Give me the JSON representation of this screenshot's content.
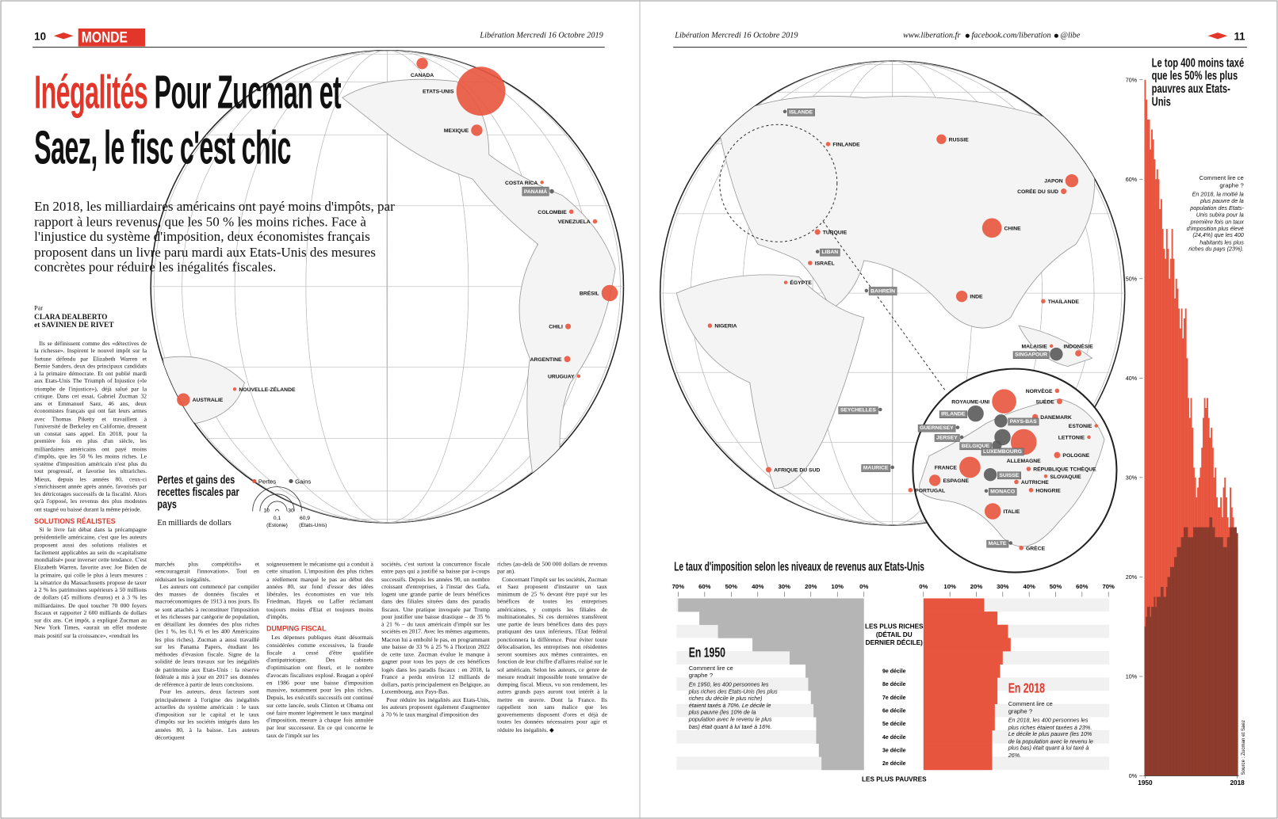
{
  "left_page": {
    "page_number": "10",
    "section": "MONDE",
    "masthead": "Libération Mercredi 16 Octobre 2019",
    "kicker": "Inégalités",
    "headline": "Pour Zucman et Saez, le fisc c'est chic",
    "lead": "En 2018, les milliardaires américains ont payé moins d'impôts, par rapport à leurs revenus, que les 50 % les moins riches. Face à l'injustice du système d'imposition, deux économistes français proposent dans un livre paru mardi aux Etats-Unis des mesures concrètes pour réduire les inégalités fiscales.",
    "byline": [
      "Par",
      "CLARA DEALBERTO",
      "et SAVINIEN DE RIVET"
    ],
    "columns": [
      [
        "Ils se définissent comme des «détectives de la richesse». Inspirent le nouvel impôt sur la fortune défendu par Elizabeth Warren et Bernie Sanders, deux des principaux candidats à la primaire démocrate. Et ont publié mardi aux Etats-Unis The Triumph of Injustice («le triomphe de l'injustice»), déjà salué par la critique. Dans cet essai, Gabriel Zucman 32 ans et Emmanuel Saez, 46 ans, deux économistes français qui ont fait leurs armes avec Thomas Piketty et travaillent à l'université de Berkeley en Californie, dressent un constat sans appel. En 2018, pour la première fois en plus d'un siècle, les milliardaires américains ont payé moins d'impôts, que les 50 % les moins riches. Le système d'imposition américain n'est plus du tout progressif, et favorise les ultrariches. Mieux, depuis les années 80, ceux-ci s'enrichissent année après année, favorisés par les détricotages successifs de la fiscalité. Alors qu'à l'opposé, les revenus des plus modestes ont stagné ou baissé durant la même période.",
        {
          "subhead": "SOLUTIONS RÉALISTES"
        },
        "Si le livre fait débat dans la précampagne présidentielle américaine, c'est que les auteurs proposent aussi des solutions réalistes et facilement applicables au sein du «capitalisme mondialisé» pour inverser cette tendance. C'est Elizabeth Warren, favorite avec Joe Biden de la primaire, qui colle le plus à leurs mesures : la sénatrice du Massachusetts propose de taxer à 2 % les patrimoines supérieurs à 50 millions de dollars (45 millions d'euros) et à 3 % les milliardaires. De quoi toucher 70 000 foyers fiscaux et rapporter 2 600 milliards de dollars sur dix ans. Cet impôt, a expliqué Zucman au New York Times, «aurait un effet modeste mais positif sur la croissance», «rendrait les"
      ],
      [
        "marchés plus compétitifs» et «encouragerait l'innovation». Tout en réduisant les inégalités.",
        "Les auteurs ont commencé par compiler des masses de données fiscales et macroéconomiques de 1913 à nos jours. Ils se sont attachés à reconstituer l'imposition et les richesses par catégorie de population, en détaillant les données des plus riches (les 1 %, les 0,1 % et les 400 Américains les plus riches). Zucman a aussi travaillé sur les Panama Papers, étudiant les méthodes d'évasion fiscale. Signe de la solidité de leurs travaux sur les inégalités de patrimoine aux Etats-Unis : la réserve fédérale a mis à jour en 2017 ses données de référence à partir de leurs conclusions.",
        "Pour les auteurs, deux facteurs sont principalement à l'origine des inégalités actuelles du système américain : le taux d'imposition sur le capital et le taux d'impôts sur les sociétés intégrés dans les années 80, à la baisse. Les auteurs décortiquent"
      ],
      [
        "soigneusement le mécanisme qui a conduit à cette situation. L'imposition des plus riches a réellement marqué le pas au début des années 80, sur fond d'essor des idées libérales, les économistes en vue tels Friedman, Hayek ou Laffer réclamant toujours moins d'Etat et toujours moins d'impôts.",
        {
          "subhead": "DUMPING FISCAL"
        },
        "Les dépenses publiques étant désormais considérées comme excessives, la fraude fiscale a cessé d'être qualifiée d'antipatriotique. Des cabinets d'optimisation ont fleuri, et le nombre d'avocats fiscalistes explosé. Reagan a opéré en 1986 pour une baisse d'imposition massive, notamment pour les plus riches. Depuis, les exécutifs successifs ont continué sur cette lancée, seuls Clinton et Obama ont osé faire monter légèrement le taux marginal d'imposition, mesure à chaque fois annulée par leur successeur. En ce qui concerne le taux de l'impôt sur les"
      ],
      [
        "sociétés, c'est surtout la concurrence fiscale entre pays qui a justifié sa baisse par à-coups successifs. Depuis les années 90, un nombre croissant d'entreprises, à l'instar des Gafa, logent une grande partie de leurs bénéfices dans des filiales situées dans des paradis fiscaux. Une pratique invoquée par Trump pour justifier une baisse drastique – de 35 % à 21 % – du taux américain d'impôt sur les sociétés en 2017. Avec les mêmes arguments, Macron lui a emboîté le pas, en programmant une baisse de 33 % à 25 % à l'horizon 2022 de cette taxe. Zucman évalue le manque à gagner pour tous les pays de ces bénéfices logés dans les paradis fiscaux : en 2018, la France a perdu environ 12 milliards de dollars, partis principalement en Belgique, au Luxembourg, aux Pays-Bas.",
        "Pour réduire les inégalités aux Etats-Unis, les auteurs proposent également d'augmenter à 70 % le taux marginal d'imposition des"
      ],
      [
        "riches (au-delà de 500 000 dollars de revenus par an).",
        "Concernant l'impôt sur les sociétés, Zucman et Saez proposent d'instaurer un taux minimum de 25 % devant être payé sur les bénéfices de toutes les entreprises américaines, y compris les filiales de multinationales. Si ces dernières transfèrent une partie de leurs bénéfices dans des pays pratiquant des taux inférieurs, l'Etat fédéral ponctionnera la différence. Pour éviter toute délocalisation, les entreprises non résidentes seront soumises aux mêmes contraintes, en fonction de leur chiffre d'affaires réalisé sur le sol américain. Selon les auteurs, ce genre de mesure rendrait impossible toute tentative de dumping fiscal. Mieux, vu son rendement, les autres grands pays auront tout intérêt à la mettre en œuvre. Dont la France. Ils rappellent non sans malice que les gouvernements disposent d'ores et déjà de toutes les données nécessaires pour agir et réduire les inégalités. ◆"
      ]
    ]
  },
  "right_page": {
    "masthead": "Libération Mercredi 16 Octobre 2019",
    "website": "www.liberation.fr",
    "facebook": "facebook.com/liberation",
    "twitter": "@libe",
    "page_number": "11"
  },
  "map": {
    "title": "Pertes et gains des recettes fiscales par pays",
    "subtitle": "En milliards de dollars",
    "size_ticks": [
      {
        "value": 0.1,
        "label": "0,1"
      },
      10,
      30,
      {
        "value": 60.9,
        "label": "60,9"
      }
    ],
    "size_notes": [
      "(Estonie)",
      "(Etats-Unis)"
    ],
    "series": [
      {
        "name": "Pertes",
        "color": "#e8553e",
        "points": [
          {
            "label": "CANADA",
            "value": 3.3
          },
          {
            "label": "ETATS-UNIS",
            "value": 60.9
          },
          {
            "label": "MEXIQUE",
            "value": 3.3
          },
          {
            "label": "COSTA RICA",
            "value": 0.3
          },
          {
            "label": "COLOMBIE",
            "value": 0.5
          },
          {
            "label": "VENEZUELA",
            "value": 0.5
          },
          {
            "label": "BRÉSIL",
            "value": 6.7
          },
          {
            "label": "CHILI",
            "value": 0.8
          },
          {
            "label": "ARGENTINE",
            "value": 1
          },
          {
            "label": "URUGUAY",
            "value": 0.3
          },
          {
            "label": "NOUVELLE-ZÉLANDE",
            "value": 0.3
          },
          {
            "label": "AUSTRALIE",
            "value": 4.3
          },
          {
            "label": "FINLANDE",
            "value": 0.5
          },
          {
            "label": "RUSSIE",
            "value": 2.4
          },
          {
            "label": "JAPON",
            "value": 4.3
          },
          {
            "label": "CORÉE DU SUD",
            "value": 0.8
          },
          {
            "label": "CHINE",
            "value": 9.7
          },
          {
            "label": "TURQUIE",
            "value": 0.8
          },
          {
            "label": "ISRAËL",
            "value": 0.5
          },
          {
            "label": "ÉGYPTE",
            "value": 0.3
          },
          {
            "label": "INDE",
            "value": 3.3
          },
          {
            "label": "THAÏLANDE",
            "value": 0.5
          },
          {
            "label": "NIGERIA",
            "value": 0.5
          },
          {
            "label": "MALAISIE",
            "value": 0.3
          },
          {
            "label": "INDONÉSIE",
            "value": 1
          },
          {
            "label": "AFRIQUE DU SUD",
            "value": 0.8
          },
          {
            "label": "ROYAUME-UNI",
            "value": 15
          },
          {
            "label": "NORVÈGE",
            "value": 0.5
          },
          {
            "label": "SUÈDE",
            "value": 0.8
          },
          {
            "label": "DANEMARK",
            "value": 0.8
          },
          {
            "label": "ESTONIE",
            "value": 0.1
          },
          {
            "label": "LETTONIE",
            "value": 0.1
          },
          {
            "label": "ALLEMAGNE",
            "value": 17
          },
          {
            "label": "POLOGNE",
            "value": 1
          },
          {
            "label": "FRANCE",
            "value": 11.4
          },
          {
            "label": "RÉPUBLIQUE TCHÈQUE",
            "value": 0.5
          },
          {
            "label": "SLOVAQUIE",
            "value": 0.3
          },
          {
            "label": "ESPAGNE",
            "value": 3.3
          },
          {
            "label": "AUTRICHE",
            "value": 0.5
          },
          {
            "label": "PORTUGAL",
            "value": 0.5
          },
          {
            "label": "HONGRIE",
            "value": 0.5
          },
          {
            "label": "ITALIE",
            "value": 6.7
          },
          {
            "label": "GRÈCE",
            "value": 0.5
          }
        ]
      },
      {
        "name": "Gains",
        "color": "#5a5a5a",
        "points": [
          {
            "label": "PANAMÁ",
            "value": 0.5
          },
          {
            "label": "ISLANDE",
            "value": 0.1
          },
          {
            "label": "LIBAN",
            "value": 0.3
          },
          {
            "label": "BAHREÏN",
            "value": 0.3
          },
          {
            "label": "SINGAPOUR",
            "value": 4.3
          },
          {
            "label": "SEYCHELLES",
            "value": 0.3
          },
          {
            "label": "MAURICE",
            "value": 0.3
          },
          {
            "label": "IRLANDE",
            "value": 6.7
          },
          {
            "label": "PAYS-BAS",
            "value": 4.3
          },
          {
            "label": "GUERNESEY",
            "value": 0.1
          },
          {
            "label": "JERSEY",
            "value": 0.1
          },
          {
            "label": "BELGIQUE",
            "value": 2.4
          },
          {
            "label": "LUXEMBOURG",
            "value": 6.7
          },
          {
            "label": "SUISSE",
            "value": 4.3
          },
          {
            "label": "MONACO",
            "value": 0.1
          },
          {
            "label": "MALTE",
            "value": 0.1
          }
        ]
      }
    ]
  },
  "chart_data": [
    {
      "type": "pyramid",
      "title": "Le taux d'imposition selon les niveaux de revenus aux Etats-Unis",
      "top_label": [
        "LES PLUS RICHES",
        "(DÉTAIL DU",
        "DERNIER DÉCILE)"
      ],
      "bottom_label": "LES PLUS PAUVRES",
      "categories": [
        null,
        null,
        null,
        null,
        null,
        "9e décile",
        "8e décile",
        "7e décile",
        "6e décile",
        "5e décile",
        "4e décile",
        "3e décile",
        "2e décile"
      ],
      "xlim": [
        0,
        70
      ],
      "xticks": [
        {
          "value": 0,
          "label": "0%"
        },
        {
          "value": 10,
          "label": "10%"
        },
        {
          "value": 20,
          "label": "20%"
        },
        {
          "value": 30,
          "label": "30%"
        },
        {
          "value": 40,
          "label": "40%"
        },
        {
          "value": 50,
          "label": "50%"
        },
        {
          "value": 60,
          "label": "60%"
        },
        {
          "value": 70,
          "label": "70%"
        }
      ],
      "series": [
        {
          "name": "En 1950",
          "color": "#b5b5b5",
          "values": [
            70,
            62,
            55,
            42,
            28,
            22,
            21,
            20,
            19,
            18,
            18,
            17,
            16
          ],
          "annotation": {
            "title": "Comment lire ce graphe ?",
            "text": "En 1950, les 400 personnes les plus riches des Etats-Unis (les plus riches du décile le plus riche) étaient taxés à 70%. Le décile le plus pauvre (les 10% de la population avec le revenu le plus bas) était quant à lui taxé à 16%."
          }
        },
        {
          "name": "En 2018",
          "color": "#e8553e",
          "values": [
            23,
            28,
            32,
            33,
            30,
            29,
            28,
            28,
            27,
            27,
            26,
            26,
            26
          ],
          "annotation": {
            "title": "Comment lire ce graphe ?",
            "text": "En 2018, les 400 personnes les plus riches étaient taxées à 23%. Le décile le plus pauvre (les 10% de la population avec le revenu le plus bas) était quant à lui taxé à 26%."
          }
        }
      ]
    },
    {
      "type": "bar",
      "title": "Le top 400 moins taxé que les 50% les plus pauvres aux Etats-Unis",
      "annotation": {
        "title": "Comment lire ce graphe ?",
        "text": "En 2018, la moitié la plus pauvre de la population des Etats-Unis subira pour la première fois un taux d'imposition plus élevé (24,4%) que les 400 habitants les plus riches du pays (23%)."
      },
      "source": "Source : Zucman et Saez",
      "x": [
        1950,
        1951,
        1952,
        1953,
        1954,
        1955,
        1956,
        1957,
        1958,
        1959,
        1960,
        1961,
        1962,
        1963,
        1964,
        1965,
        1966,
        1967,
        1968,
        1969,
        1970,
        1971,
        1972,
        1973,
        1974,
        1975,
        1976,
        1977,
        1978,
        1979,
        1980,
        1981,
        1982,
        1983,
        1984,
        1985,
        1986,
        1987,
        1988,
        1989,
        1990,
        1991,
        1992,
        1993,
        1994,
        1995,
        1996,
        1997,
        1998,
        1999,
        2000,
        2001,
        2002,
        2003,
        2004,
        2005,
        2006,
        2007,
        2008,
        2009,
        2010,
        2011,
        2012,
        2013,
        2014,
        2015,
        2016,
        2017,
        2018
      ],
      "xlim": [
        1950,
        2018
      ],
      "xticks": [
        1950,
        2018
      ],
      "ylim": [
        0,
        70
      ],
      "yticks": [
        {
          "value": 0,
          "label": "0%"
        },
        {
          "value": 10,
          "label": "10%"
        },
        {
          "value": 20,
          "label": "20%"
        },
        {
          "value": 30,
          "label": "30%"
        },
        {
          "value": 40,
          "label": "40%"
        },
        {
          "value": 50,
          "label": "50%"
        },
        {
          "value": 60,
          "label": "60%"
        },
        {
          "value": 70,
          "label": "70%"
        }
      ],
      "series": [
        {
          "color": "#e8553e",
          "values": [
            70,
            68,
            66,
            66,
            63,
            65,
            64,
            62,
            60,
            61,
            60,
            57,
            58,
            55,
            53,
            52,
            55,
            53,
            50,
            52,
            55,
            52,
            48,
            50,
            49,
            47,
            45,
            47,
            44,
            46,
            47,
            42,
            38,
            36,
            38,
            35,
            31,
            30,
            28,
            29,
            30,
            31,
            33,
            36,
            38,
            37,
            38,
            36,
            34,
            35,
            33,
            30,
            31,
            28,
            27,
            27,
            28,
            26,
            29,
            30,
            28,
            26,
            25,
            29,
            27,
            26,
            24,
            25,
            23
          ]
        },
        {
          "color": "#8c3b2c",
          "values": [
            15,
            16,
            17,
            17,
            16,
            17,
            17,
            18,
            17,
            18,
            18,
            18,
            19,
            19,
            18,
            18,
            19,
            20,
            20,
            21,
            21,
            21,
            22,
            22,
            23,
            23,
            23,
            24,
            24,
            25,
            25,
            25,
            24,
            24,
            24,
            24,
            25,
            25,
            25,
            25,
            25,
            25,
            25,
            25,
            25,
            25,
            25,
            25,
            26,
            26,
            25,
            25,
            24,
            24,
            24,
            24,
            24,
            24,
            23,
            23,
            23,
            24,
            24,
            25,
            25,
            25,
            25,
            25,
            24.4
          ]
        }
      ]
    }
  ]
}
